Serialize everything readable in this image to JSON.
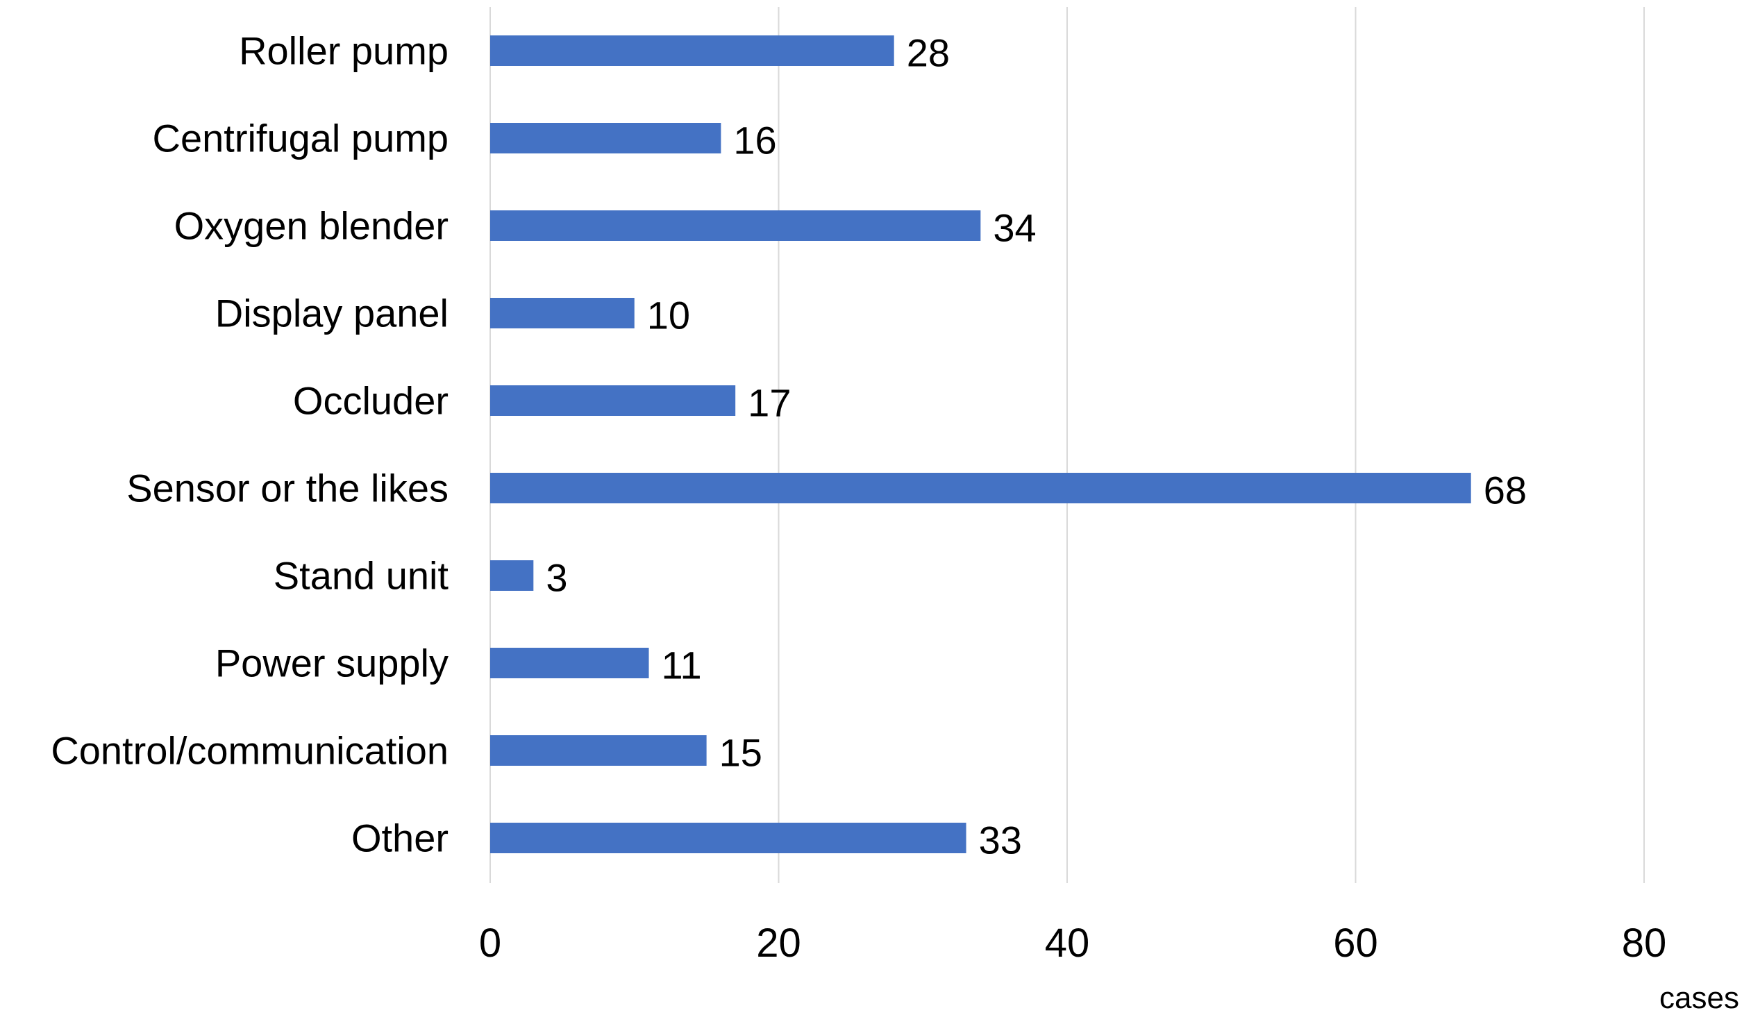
{
  "chart_data": {
    "type": "bar",
    "orientation": "horizontal",
    "categories": [
      "Roller pump",
      "Centrifugal pump",
      "Oxygen blender",
      "Display panel",
      "Occluder",
      "Sensor or the likes",
      "Stand unit",
      "Power supply",
      "Control/communication",
      "Other"
    ],
    "values": [
      28,
      16,
      34,
      10,
      17,
      68,
      3,
      11,
      15,
      33
    ],
    "data_labels": [
      "28",
      "16",
      "34",
      "10",
      "17",
      "68",
      "3",
      "11",
      "15",
      "33"
    ],
    "xlabel": "cases",
    "xlim": [
      0,
      80
    ],
    "xticks": [
      0,
      20,
      40,
      60,
      80
    ],
    "xtick_labels": [
      "0",
      "20",
      "40",
      "60",
      "80"
    ],
    "grid": "vertical",
    "legend": "none",
    "bar_color": "#4472c4"
  }
}
